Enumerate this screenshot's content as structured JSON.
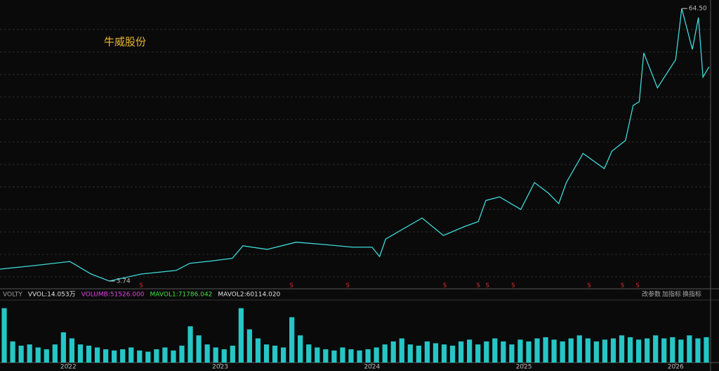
{
  "chart_data": [
    {
      "type": "line",
      "title": "牛威股份",
      "color": "#3fd9d9",
      "x": [
        2021.55,
        2021.78,
        2022.01,
        2022.15,
        2022.27,
        2022.48,
        2022.71,
        2022.8,
        2022.94,
        2023.08,
        2023.15,
        2023.31,
        2023.5,
        2023.68,
        2023.87,
        2024.0,
        2024.05,
        2024.09,
        2024.33,
        2024.47,
        2024.61,
        2024.7,
        2024.75,
        2024.84,
        2024.98,
        2025.07,
        2025.16,
        2025.23,
        2025.28,
        2025.39,
        2025.53,
        2025.58,
        2025.67,
        2025.72,
        2025.76,
        2025.79,
        2025.88,
        2026.0,
        2026.04,
        2026.11,
        2026.15,
        2026.18,
        2026.22
      ],
      "values": [
        6.4,
        7.2,
        8.1,
        5.3,
        3.74,
        5.3,
        6.1,
        7.7,
        8.2,
        8.8,
        11.6,
        10.8,
        12.4,
        11.9,
        11.3,
        11.3,
        9.2,
        13.1,
        17.8,
        13.9,
        15.9,
        17.0,
        21.7,
        22.5,
        19.7,
        25.7,
        23.4,
        21.0,
        25.7,
        32.2,
        28.8,
        32.7,
        35.1,
        42.9,
        43.7,
        54.6,
        46.8,
        53.1,
        64.5,
        55.4,
        62.5,
        49.2,
        51.5
      ],
      "max_label": {
        "x": 2026.04,
        "value": 64.5,
        "label": "64.50"
      },
      "min_label": {
        "x": 2022.27,
        "value": 3.74,
        "label": "3.74"
      },
      "signals": {
        "label": "S",
        "color": "#ff3030",
        "x": [
          2022.48,
          2023.47,
          2023.84,
          2024.48,
          2024.7,
          2024.76,
          2024.93,
          2025.43,
          2025.65,
          2025.75
        ]
      },
      "xlim": [
        2021.55,
        2026.23
      ],
      "ylim": [
        2.17,
        66.4
      ]
    },
    {
      "type": "bar",
      "color": "#26c6c6",
      "indicator": [
        "VOLTY",
        "VVOL:14.053万",
        "VOLUMB:51526.000",
        "MAVOL1:71786.042",
        "MAVOL2:60114.020"
      ],
      "indicator_colors": [
        "#9a9a9a",
        "#e0e0e0",
        "#e040e0",
        "#40e040",
        "#e0e0e0"
      ],
      "buttons": [
        "改参数",
        "加指标",
        "换指标"
      ],
      "values": [
        90,
        35,
        28,
        30,
        25,
        22,
        30,
        50,
        40,
        30,
        28,
        25,
        22,
        20,
        22,
        25,
        20,
        18,
        22,
        25,
        20,
        28,
        60,
        45,
        30,
        25,
        22,
        28,
        90,
        55,
        40,
        30,
        28,
        25,
        75,
        45,
        30,
        25,
        22,
        20,
        25,
        22,
        20,
        22,
        25,
        30,
        35,
        40,
        30,
        28,
        35,
        32,
        30,
        28,
        35,
        38,
        30,
        35,
        40,
        35,
        30,
        38,
        35,
        40,
        42,
        38,
        35,
        40,
        45,
        40,
        35,
        38,
        40,
        45,
        42,
        38,
        40,
        45,
        40,
        42,
        38,
        45,
        40,
        42
      ],
      "ylim": [
        0,
        100
      ],
      "xticks": [
        2022,
        2023,
        2024,
        2025,
        2026
      ]
    }
  ]
}
